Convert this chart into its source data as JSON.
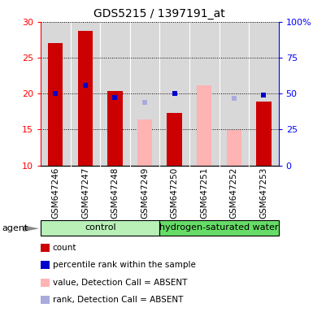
{
  "title": "GDS5215 / 1397191_at",
  "samples": [
    "GSM647246",
    "GSM647247",
    "GSM647248",
    "GSM647249",
    "GSM647250",
    "GSM647251",
    "GSM647252",
    "GSM647253"
  ],
  "count_values": [
    27.0,
    28.7,
    20.4,
    null,
    17.3,
    null,
    null,
    18.9
  ],
  "count_absent_values": [
    null,
    null,
    null,
    16.4,
    null,
    21.2,
    14.9,
    null
  ],
  "rank_values": [
    20.0,
    21.2,
    19.5,
    null,
    20.0,
    null,
    null,
    19.8
  ],
  "rank_absent_values": [
    null,
    null,
    null,
    18.8,
    null,
    null,
    19.3,
    null
  ],
  "ylim_left": [
    10,
    30
  ],
  "ylim_right": [
    0,
    100
  ],
  "yticks_left": [
    10,
    15,
    20,
    25,
    30
  ],
  "yticks_right": [
    0,
    25,
    50,
    75,
    100
  ],
  "ytick_labels_right": [
    "0",
    "25",
    "50",
    "75",
    "100%"
  ],
  "bar_color_present": "#cc0000",
  "bar_color_absent": "#ffb3b3",
  "dot_color_present": "#0000cc",
  "dot_color_absent": "#aaaadd",
  "bar_width": 0.5,
  "control_label": "control",
  "hsw_label": "hydrogen-saturated water",
  "group_bg_light": "#b8f0b8",
  "group_bg_dark": "#66dd66",
  "sample_bg": "#d8d8d8",
  "agent_label": "agent",
  "legend_items": [
    {
      "label": "count",
      "color": "#cc0000"
    },
    {
      "label": "percentile rank within the sample",
      "color": "#0000cc"
    },
    {
      "label": "value, Detection Call = ABSENT",
      "color": "#ffb3b3"
    },
    {
      "label": "rank, Detection Call = ABSENT",
      "color": "#aaaadd"
    }
  ]
}
